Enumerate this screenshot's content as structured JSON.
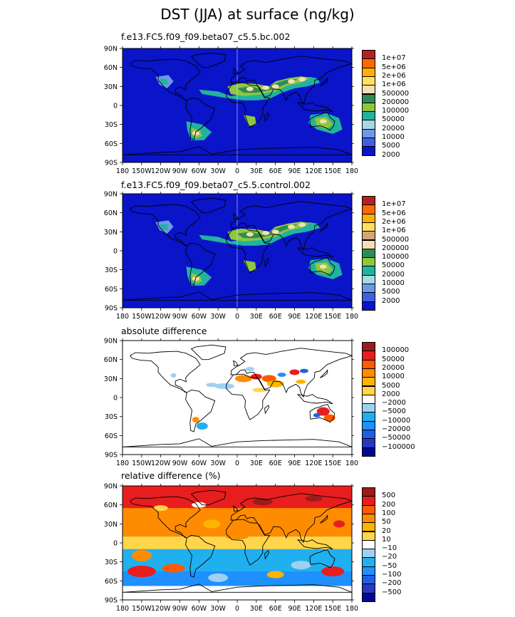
{
  "title": "DST (JJA) at surface (ng/kg)",
  "colors": {
    "ocean_blue": "#0a14c8",
    "land_outline": "#000000"
  },
  "chart_data": [
    {
      "type": "heatmap",
      "title": "f.e13.FC5.f09_f09.beta07_c5.5.bc.002",
      "x_ticks": [
        "180",
        "150W",
        "120W",
        "90W",
        "60W",
        "30W",
        "0",
        "30E",
        "60E",
        "90E",
        "120E",
        "150E",
        "180"
      ],
      "y_ticks": [
        "90N",
        "60N",
        "30N",
        "0",
        "30S",
        "60S",
        "90S"
      ],
      "legend": {
        "labels": [
          "1e+07",
          "5e+06",
          "2e+06",
          "1e+06",
          "500000",
          "200000",
          "100000",
          "50000",
          "20000",
          "10000",
          "5000",
          "2000"
        ],
        "colors": [
          "#b22222",
          "#ff6a00",
          "#ffb000",
          "#ffe060",
          "#f5deb3",
          "#2e8b57",
          "#8fc640",
          "#22b2a0",
          "#a8d8e0",
          "#6c9ae8",
          "#4060e0",
          "#0a14c8"
        ]
      }
    },
    {
      "type": "heatmap",
      "title": "f.e13.FC5.f09_f09.beta07_c5.5.control.002",
      "x_ticks": [
        "180",
        "150W",
        "120W",
        "90W",
        "60W",
        "30W",
        "0",
        "30E",
        "60E",
        "90E",
        "120E",
        "150E",
        "180"
      ],
      "y_ticks": [
        "90N",
        "60N",
        "30N",
        "0",
        "30S",
        "60S",
        "90S"
      ],
      "legend": {
        "labels": [
          "1e+07",
          "5e+06",
          "2e+06",
          "1e+06",
          "500000",
          "200000",
          "100000",
          "50000",
          "20000",
          "10000",
          "5000",
          "2000"
        ],
        "colors": [
          "#b22222",
          "#ff6a00",
          "#ffb000",
          "#ffe060",
          "#d2a679",
          "#f5deb3",
          "#2e8b57",
          "#8fc640",
          "#22b2a0",
          "#a8d8e0",
          "#6c9ae8",
          "#4060e0",
          "#0a14c8"
        ]
      }
    },
    {
      "type": "heatmap",
      "title": "absolute difference",
      "x_ticks": [
        "180",
        "150W",
        "120W",
        "90W",
        "60W",
        "30W",
        "0",
        "30E",
        "60E",
        "90E",
        "120E",
        "150E",
        "180"
      ],
      "y_ticks": [
        "90N",
        "60N",
        "30N",
        "0",
        "30S",
        "60S",
        "90S"
      ],
      "legend": {
        "labels": [
          "100000",
          "50000",
          "20000",
          "10000",
          "5000",
          "2000",
          "−2000",
          "−5000",
          "−10000",
          "−20000",
          "−50000",
          "−100000"
        ],
        "colors": [
          "#9b1b1b",
          "#e81e1e",
          "#ff5a00",
          "#ff8c00",
          "#ffb400",
          "#ffd64a",
          "#ffffff",
          "#a0d0f0",
          "#20b0f0",
          "#1e90ff",
          "#2060e0",
          "#2838c0",
          "#000a90"
        ]
      }
    },
    {
      "type": "heatmap",
      "title": "relative difference (%)",
      "x_ticks": [
        "180",
        "150W",
        "120W",
        "90W",
        "60W",
        "30W",
        "0",
        "30E",
        "60E",
        "90E",
        "120E",
        "150E",
        "180"
      ],
      "y_ticks": [
        "90N",
        "60N",
        "30N",
        "0",
        "30S",
        "60S",
        "90S"
      ],
      "legend": {
        "labels": [
          "500",
          "200",
          "100",
          "50",
          "20",
          "10",
          "−10",
          "−20",
          "−50",
          "−100",
          "−200",
          "−500"
        ],
        "colors": [
          "#9b1b1b",
          "#e81e1e",
          "#ff5a00",
          "#ff8c00",
          "#ffb400",
          "#ffd64a",
          "#ffffff",
          "#a0d0f0",
          "#20b0f0",
          "#1e90ff",
          "#2060e0",
          "#2838c0",
          "#000a90"
        ]
      }
    }
  ]
}
